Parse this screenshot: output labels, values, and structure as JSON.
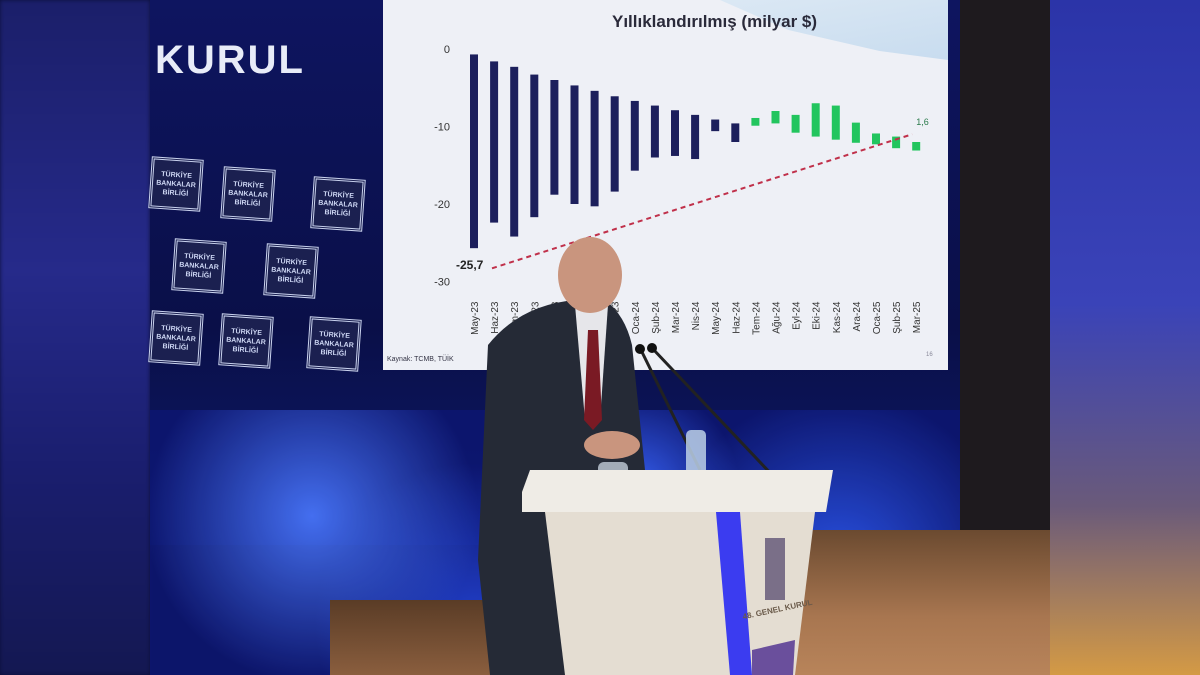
{
  "background_screen": {
    "heading_fragment": "KURUL",
    "logo_text": [
      "TÜRKİYE",
      "BANKALAR",
      "BİRLİĞİ"
    ]
  },
  "slide": {
    "source": "Kaynak: TCMB, TÜİK",
    "page_number": "16"
  },
  "podium": {
    "label": "48. GENEL KURUL"
  },
  "colors": {
    "deficit_bar": "#1c1f5c",
    "improvement_bar": "#22c55e",
    "trend_line": "#c0304a",
    "screen_background": "#0e1560"
  },
  "chart_data": {
    "type": "bar",
    "title": "Yıllıklandırılmış (milyar $)",
    "ylim": [
      -30,
      0
    ],
    "yticks": [
      "0",
      "-10",
      "-20",
      "-30"
    ],
    "yticks_values": [
      0,
      -10,
      -20,
      -30
    ],
    "grid": false,
    "categories": [
      "May-23",
      "Haz-23",
      "Tem-23",
      "Ağu-23",
      "Eyl-23",
      "Eki-23",
      "Kas-23",
      "Ara-23",
      "Oca-24",
      "Şub-24",
      "Mar-24",
      "Nis-24",
      "May-24",
      "Haz-24",
      "Tem-24",
      "Ağu-24",
      "Eyl-24",
      "Eki-24",
      "Kas-24",
      "Ara-24",
      "Oca-25",
      "Şub-25",
      "Mar-25"
    ],
    "bar_start": [
      -0.7,
      -1.6,
      -2.3,
      -3.3,
      -4.0,
      -4.7,
      -5.4,
      -6.1,
      -6.7,
      -7.3,
      -7.9,
      -8.5,
      -9.1,
      -9.6,
      -8.9,
      -8.0,
      -8.5,
      -7.0,
      -7.3,
      -9.5,
      -10.9,
      -11.3,
      -12.0
    ],
    "bar_end": [
      -25.7,
      -22.4,
      -24.2,
      -21.7,
      -18.8,
      -20.0,
      -20.3,
      -18.4,
      -15.7,
      -14.0,
      -13.8,
      -14.2,
      -10.6,
      -12.0,
      -9.9,
      -9.6,
      -10.8,
      -11.3,
      -11.7,
      -12.1,
      -12.3,
      -12.8,
      -13.1
    ],
    "bar_colors": [
      "dark",
      "dark",
      "dark",
      "dark",
      "dark",
      "dark",
      "dark",
      "dark",
      "dark",
      "dark",
      "dark",
      "dark",
      "dark",
      "dark",
      "green",
      "green",
      "green",
      "green",
      "green",
      "green",
      "green",
      "green",
      "green"
    ],
    "annotations": [
      {
        "text": "-25,7",
        "category": "May-23"
      },
      {
        "text": "1,6",
        "category": "Mar-25"
      }
    ],
    "trend_line": {
      "style": "dashed",
      "from": {
        "category": "May-23",
        "value": -28.3
      },
      "to": {
        "category": "Mar-25",
        "value": -11.0
      }
    }
  }
}
